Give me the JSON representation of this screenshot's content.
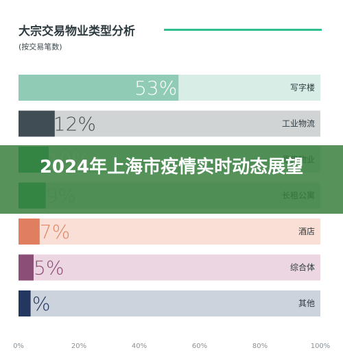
{
  "header": {
    "title": "大宗交易物业类型分析",
    "subtitle": "(按交易笔数)"
  },
  "banner": {
    "text": "2024年上海市疫情实时动态展望"
  },
  "chart_data": {
    "type": "bar",
    "orientation": "horizontal",
    "title": "大宗交易物业类型分析",
    "subtitle": "(按交易笔数)",
    "categories": [
      "写字楼",
      "工业物流",
      "零售物业",
      "长租公寓",
      "酒店",
      "综合体",
      "其他"
    ],
    "values": [
      53,
      12,
      10,
      9,
      7,
      5,
      4
    ],
    "value_labels": [
      "53%",
      "12%",
      "10%",
      "9%",
      "7%",
      "5%",
      "4%"
    ],
    "xlim": [
      0,
      100
    ],
    "xticks": [
      "0%",
      "20%",
      "40%",
      "60%",
      "80%",
      "100%"
    ],
    "grid": false,
    "colors": {
      "bars": [
        "#8fcbb5",
        "#404d54",
        "#27a568",
        "#27a568",
        "#e07e60",
        "#8b4e76",
        "#23375f"
      ],
      "tracks": [
        "#d7ede5",
        "#d1d4d4",
        "#cfe8db",
        "#cfe8db",
        "#f9dfd5",
        "#ecd6e1",
        "#cdd3dd"
      ],
      "value_text": [
        "#ffffff",
        "#4a5155",
        "#ffffff",
        "#9bc9b3",
        "#e0876a",
        "#8b4e76",
        "#23375f"
      ]
    }
  }
}
